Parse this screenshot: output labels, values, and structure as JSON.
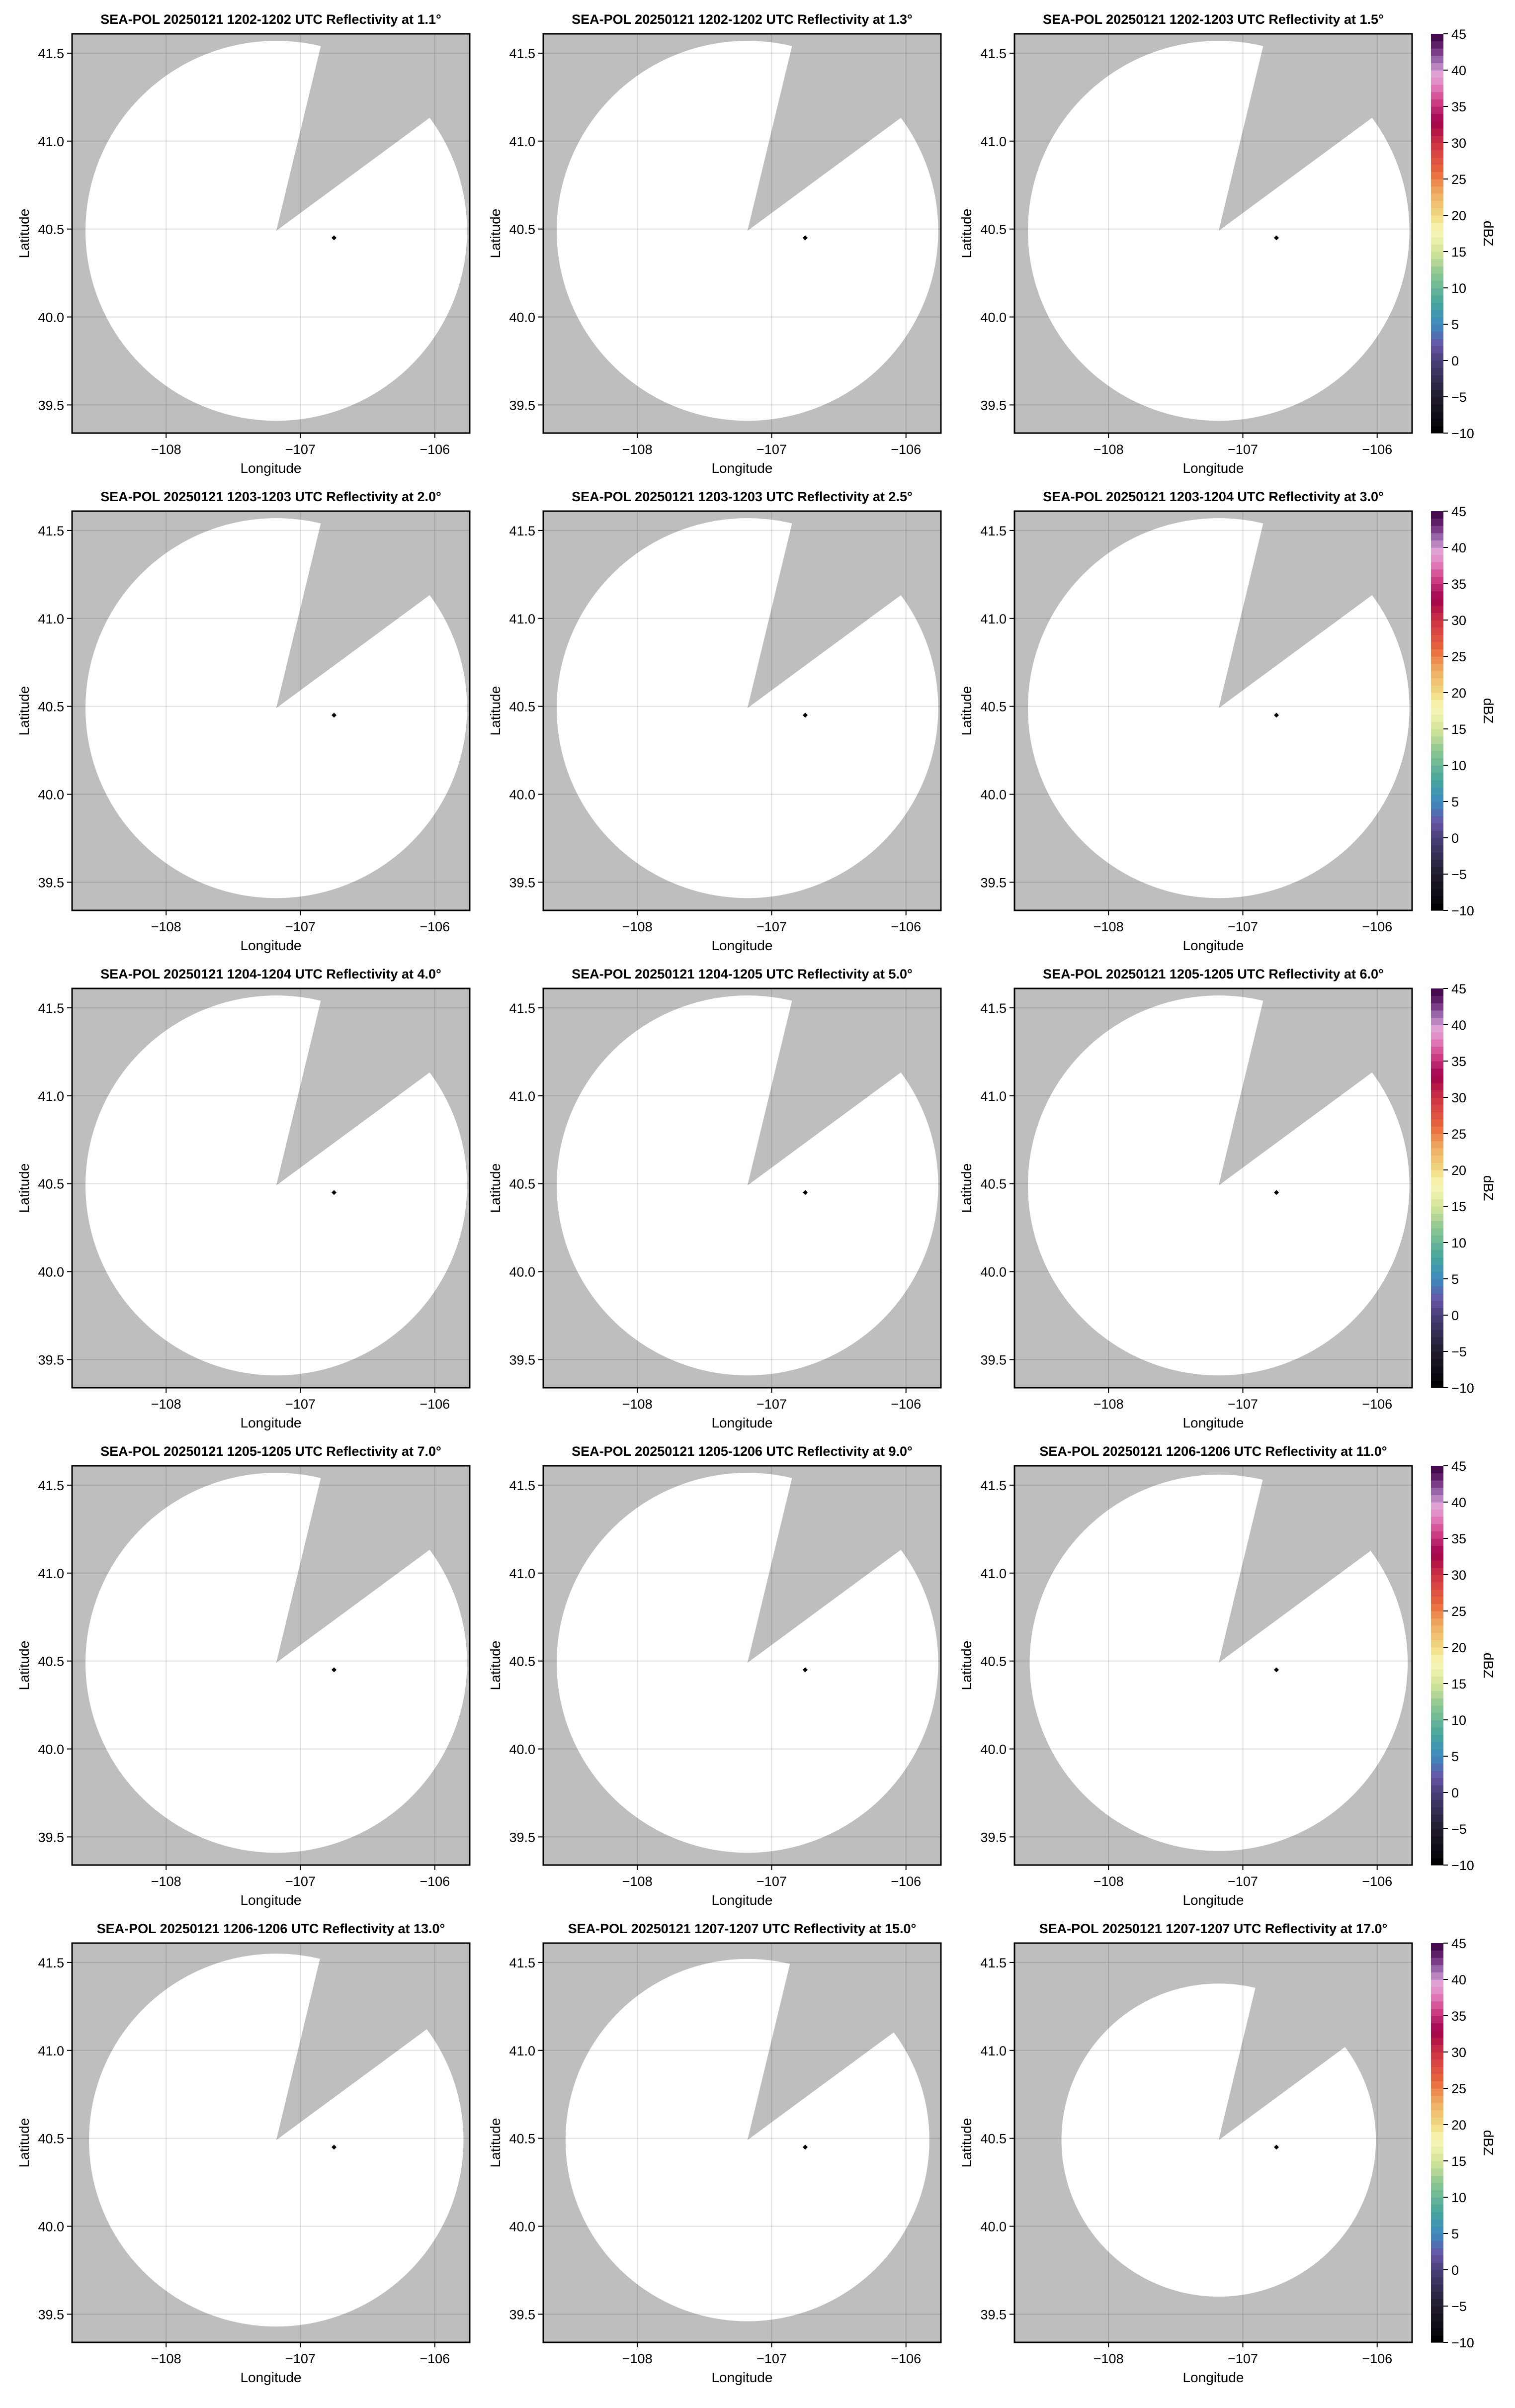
{
  "chart_data": {
    "type": "heatmap",
    "layout": "5 rows x 3 columns",
    "xlabel": "Longitude",
    "ylabel": "Latitude",
    "xlim": [
      -108.7,
      -105.74
    ],
    "ylim": [
      39.34,
      41.61
    ],
    "xticks": [
      -108,
      -107,
      -106
    ],
    "xtick_labels": [
      "−108",
      "−107",
      "−106"
    ],
    "yticks": [
      39.5,
      40.0,
      40.5,
      41.0,
      41.5
    ],
    "ytick_labels": [
      "39.5",
      "40.0",
      "40.5",
      "41.0",
      "41.5"
    ],
    "grid": true,
    "background_color": "#bebebe",
    "data_fill_color": "#ffffff",
    "radar_center": {
      "lon": -107.18,
      "lat": 40.49
    },
    "marker": {
      "lon": -106.75,
      "lat": 40.45,
      "color": "#000000"
    },
    "blocked_sector_azimuth_deg": [
      14,
      53.5
    ],
    "colorbar": {
      "label": "dBZ",
      "range": [
        -10,
        45
      ],
      "ticks": [
        -10,
        -5,
        0,
        5,
        10,
        15,
        20,
        25,
        30,
        35,
        40,
        45
      ],
      "tick_labels": [
        "−10",
        "−5",
        "0",
        "5",
        "10",
        "15",
        "20",
        "25",
        "30",
        "35",
        "40",
        "45"
      ],
      "colormap_stops": [
        [
          -10,
          "#000000"
        ],
        [
          -5,
          "#211b2d"
        ],
        [
          0,
          "#4a3f78"
        ],
        [
          2,
          "#6752a6"
        ],
        [
          5,
          "#3d8ac0"
        ],
        [
          8,
          "#47a69c"
        ],
        [
          12,
          "#8bc791"
        ],
        [
          15,
          "#d6e599"
        ],
        [
          18,
          "#f8f8b8"
        ],
        [
          20,
          "#f1d982"
        ],
        [
          23,
          "#eeae60"
        ],
        [
          26,
          "#e9693d"
        ],
        [
          30,
          "#cc3145"
        ],
        [
          33,
          "#a0014b"
        ],
        [
          36,
          "#d3468f"
        ],
        [
          38,
          "#e386c0"
        ],
        [
          39.5,
          "#e2a0d4"
        ],
        [
          41,
          "#a878b8"
        ],
        [
          43,
          "#6a2878"
        ],
        [
          45,
          "#3a0040"
        ]
      ]
    },
    "panels": [
      {
        "title": "SEA-POL 20250121 1202-1202 UTC Reflectivity at 1.1°",
        "range_deg_lat": 1.08
      },
      {
        "title": "SEA-POL 20250121 1202-1202 UTC Reflectivity at 1.3°",
        "range_deg_lat": 1.08
      },
      {
        "title": "SEA-POL 20250121 1202-1203 UTC Reflectivity at 1.5°",
        "range_deg_lat": 1.08
      },
      {
        "title": "SEA-POL 20250121 1203-1203 UTC Reflectivity at 2.0°",
        "range_deg_lat": 1.08
      },
      {
        "title": "SEA-POL 20250121 1203-1203 UTC Reflectivity at 2.5°",
        "range_deg_lat": 1.08
      },
      {
        "title": "SEA-POL 20250121 1203-1204 UTC Reflectivity at 3.0°",
        "range_deg_lat": 1.08
      },
      {
        "title": "SEA-POL 20250121 1204-1204 UTC Reflectivity at 4.0°",
        "range_deg_lat": 1.08
      },
      {
        "title": "SEA-POL 20250121 1204-1205 UTC Reflectivity at 5.0°",
        "range_deg_lat": 1.08
      },
      {
        "title": "SEA-POL 20250121 1205-1205 UTC Reflectivity at 6.0°",
        "range_deg_lat": 1.08
      },
      {
        "title": "SEA-POL 20250121 1205-1205 UTC Reflectivity at 7.0°",
        "range_deg_lat": 1.08
      },
      {
        "title": "SEA-POL 20250121 1205-1206 UTC Reflectivity at 9.0°",
        "range_deg_lat": 1.08
      },
      {
        "title": "SEA-POL 20250121 1206-1206 UTC Reflectivity at 11.0°",
        "range_deg_lat": 1.07
      },
      {
        "title": "SEA-POL 20250121 1206-1206 UTC Reflectivity at 13.0°",
        "range_deg_lat": 1.06
      },
      {
        "title": "SEA-POL 20250121 1207-1207 UTC Reflectivity at 15.0°",
        "range_deg_lat": 1.03
      },
      {
        "title": "SEA-POL 20250121 1207-1207 UTC Reflectivity at 17.0°",
        "range_deg_lat": 0.89
      }
    ]
  }
}
